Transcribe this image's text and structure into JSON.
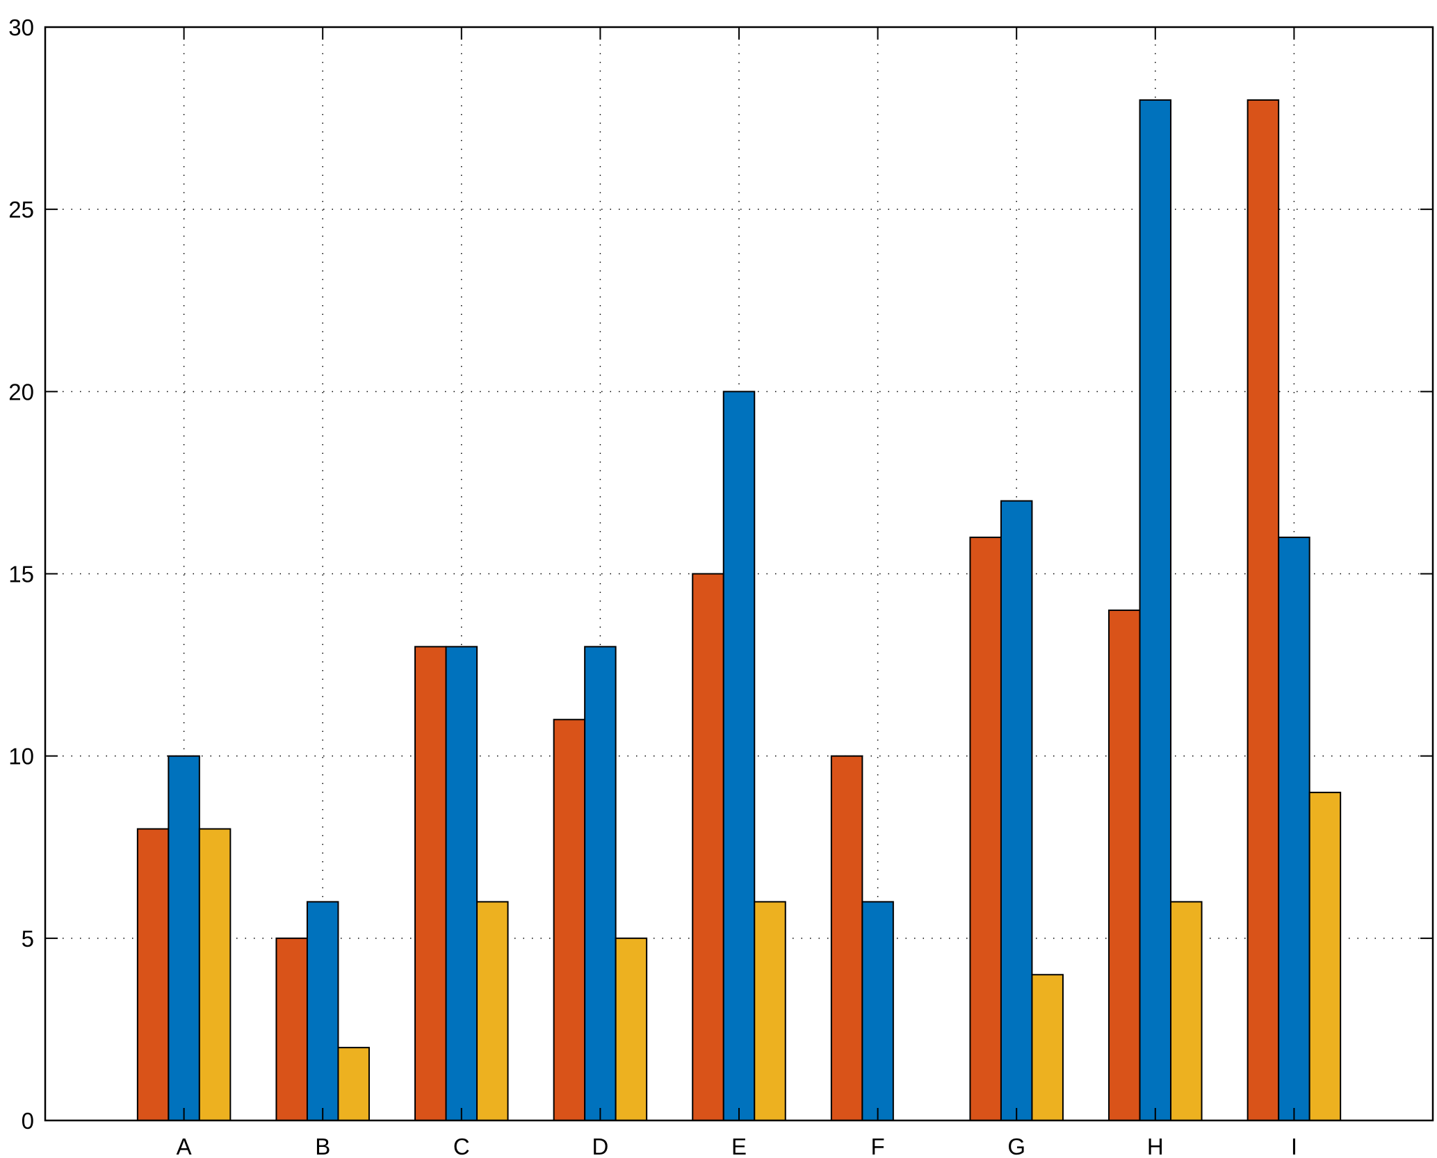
{
  "chart_data": {
    "type": "bar",
    "categories": [
      "A",
      "B",
      "C",
      "D",
      "E",
      "F",
      "G",
      "H",
      "I"
    ],
    "series": [
      {
        "color": "#D95319",
        "values": [
          8,
          5,
          13,
          11,
          15,
          10,
          16,
          14,
          28
        ]
      },
      {
        "color": "#0072BD",
        "values": [
          10,
          6,
          13,
          13,
          20,
          6,
          17,
          28,
          16
        ]
      },
      {
        "color": "#EDB120",
        "values": [
          8,
          2,
          6,
          5,
          6,
          0,
          4,
          6,
          9
        ]
      }
    ],
    "ylim": [
      0,
      30
    ],
    "yticks": [
      0,
      5,
      10,
      15,
      20,
      25,
      30
    ],
    "ytick_labels": [
      "0",
      "5",
      "10",
      "15",
      "20",
      "25",
      "30"
    ],
    "title": "",
    "xlabel": "",
    "ylabel": "",
    "grid": true,
    "legend": "none"
  }
}
